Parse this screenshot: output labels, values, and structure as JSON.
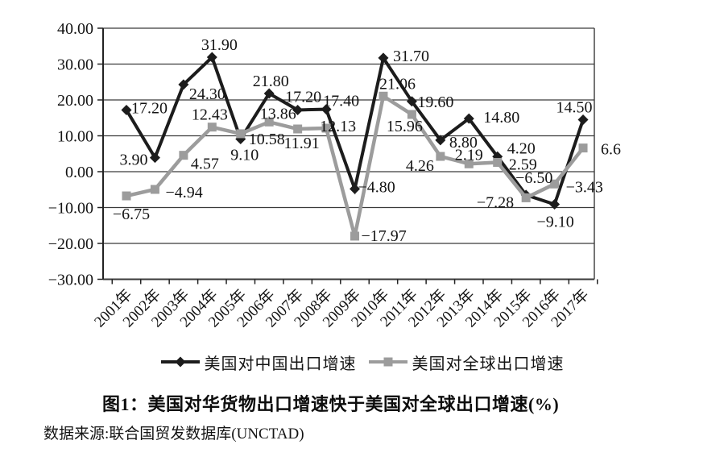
{
  "chart_data": {
    "type": "line",
    "title": "图1：美国对华货物出口增速快于美国对全球出口增速(%)",
    "source_note": "数据来源:联合国贸发数据库(UNCTAD)",
    "categories": [
      "2001年",
      "2002年",
      "2003年",
      "2004年",
      "2005年",
      "2006年",
      "2007年",
      "2008年",
      "2009年",
      "2010年",
      "2011年",
      "2012年",
      "2013年",
      "2014年",
      "2015年",
      "2016年",
      "2017年"
    ],
    "y_axis": {
      "min": -30,
      "max": 40,
      "step": 10,
      "tick_values": [
        40,
        30,
        20,
        10,
        0,
        -10,
        -20,
        -30
      ],
      "tick_labels": [
        "40.00",
        "30.00",
        "20.00",
        "10.00",
        "0.00",
        "−10.00",
        "−20.00",
        "−30.00"
      ]
    },
    "grid": true,
    "legend_position": "bottom",
    "series": [
      {
        "name": "美国对中国出口增速",
        "marker": "diamond",
        "color": "#1c1c1c",
        "values": [
          17.2,
          3.9,
          24.3,
          31.9,
          9.1,
          21.8,
          17.2,
          17.4,
          -4.8,
          31.7,
          19.6,
          8.8,
          14.8,
          4.2,
          -6.5,
          -9.1,
          14.5
        ],
        "labels": [
          "17.20",
          "3.90",
          "24.30",
          "31.90",
          "9.10",
          "21.80",
          "17.20",
          "17.40",
          "−4.80",
          "31.70",
          "19.60",
          "8.80",
          "14.80",
          "4.20",
          "−6.50",
          "−9.10",
          "14.50"
        ]
      },
      {
        "name": "美国对全球出口增速",
        "marker": "square",
        "color": "#9c9c9c",
        "values": [
          -6.75,
          -4.94,
          4.57,
          12.43,
          10.58,
          13.86,
          11.91,
          12.13,
          -17.97,
          21.06,
          15.96,
          4.26,
          2.19,
          2.59,
          -7.28,
          -3.43,
          6.6
        ],
        "labels": [
          "−6.75",
          "−4.94",
          "4.57",
          "12.43",
          "10.58",
          "13.86",
          "11.91",
          "12.13",
          "−17.97",
          "21.06",
          "15.96",
          "4.26",
          "2.19",
          "2.59",
          "−7.28",
          "−3.43",
          "6.6"
        ]
      }
    ]
  }
}
